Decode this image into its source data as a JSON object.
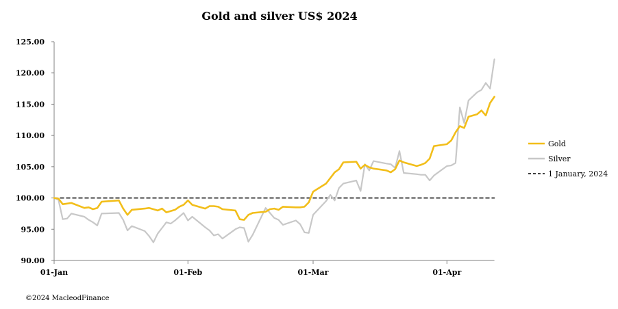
{
  "chart_data": {
    "type": "line",
    "title": "Gold and silver  US$ 2024",
    "xlabel": "",
    "ylabel": "",
    "ylim": [
      90,
      125
    ],
    "y_ticks": [
      "90.00",
      "95.00",
      "100.00",
      "105.00",
      "110.00",
      "115.00",
      "120.00",
      "125.00"
    ],
    "x_ticks": [
      {
        "label": "01-Jan",
        "date": "2024-01-01"
      },
      {
        "label": "01-Feb",
        "date": "2024-02-01"
      },
      {
        "label": "01-Mar",
        "date": "2024-03-01"
      },
      {
        "label": "01-Apr",
        "date": "2024-04-01"
      }
    ],
    "xlim": [
      "2024-01-01",
      "2024-04-12"
    ],
    "grid": false,
    "legend_position": "right",
    "series": [
      {
        "name": "Gold",
        "color": "#F2BE1A",
        "dashed": false,
        "points": [
          [
            "2024-01-01",
            100.0
          ],
          [
            "2024-01-02",
            99.9
          ],
          [
            "2024-01-03",
            99.0
          ],
          [
            "2024-01-04",
            99.1
          ],
          [
            "2024-01-05",
            99.2
          ],
          [
            "2024-01-08",
            98.4
          ],
          [
            "2024-01-09",
            98.5
          ],
          [
            "2024-01-10",
            98.2
          ],
          [
            "2024-01-11",
            98.4
          ],
          [
            "2024-01-12",
            99.4
          ],
          [
            "2024-01-16",
            99.6
          ],
          [
            "2024-01-17",
            98.3
          ],
          [
            "2024-01-18",
            97.3
          ],
          [
            "2024-01-19",
            98.1
          ],
          [
            "2024-01-22",
            98.3
          ],
          [
            "2024-01-23",
            98.4
          ],
          [
            "2024-01-24",
            98.2
          ],
          [
            "2024-01-25",
            98.0
          ],
          [
            "2024-01-26",
            98.3
          ],
          [
            "2024-01-27",
            97.7
          ],
          [
            "2024-01-28",
            97.9
          ],
          [
            "2024-01-29",
            98.1
          ],
          [
            "2024-01-30",
            98.6
          ],
          [
            "2024-01-31",
            98.9
          ],
          [
            "2024-02-01",
            99.6
          ],
          [
            "2024-02-02",
            98.9
          ],
          [
            "2024-02-05",
            98.3
          ],
          [
            "2024-02-06",
            98.7
          ],
          [
            "2024-02-07",
            98.7
          ],
          [
            "2024-02-08",
            98.6
          ],
          [
            "2024-02-09",
            98.2
          ],
          [
            "2024-02-12",
            98.0
          ],
          [
            "2024-02-13",
            96.6
          ],
          [
            "2024-02-14",
            96.5
          ],
          [
            "2024-02-15",
            97.3
          ],
          [
            "2024-02-16",
            97.6
          ],
          [
            "2024-02-19",
            97.8
          ],
          [
            "2024-02-20",
            98.2
          ],
          [
            "2024-02-21",
            98.3
          ],
          [
            "2024-02-22",
            98.1
          ],
          [
            "2024-02-23",
            98.6
          ],
          [
            "2024-02-26",
            98.5
          ],
          [
            "2024-02-27",
            98.5
          ],
          [
            "2024-02-28",
            98.6
          ],
          [
            "2024-02-29",
            99.3
          ],
          [
            "2024-03-01",
            101.0
          ],
          [
            "2024-03-04",
            102.3
          ],
          [
            "2024-03-05",
            103.2
          ],
          [
            "2024-03-06",
            104.1
          ],
          [
            "2024-03-07",
            104.6
          ],
          [
            "2024-03-08",
            105.7
          ],
          [
            "2024-03-11",
            105.8
          ],
          [
            "2024-03-12",
            104.7
          ],
          [
            "2024-03-13",
            105.3
          ],
          [
            "2024-03-14",
            104.9
          ],
          [
            "2024-03-15",
            104.7
          ],
          [
            "2024-03-18",
            104.4
          ],
          [
            "2024-03-19",
            104.1
          ],
          [
            "2024-03-20",
            104.6
          ],
          [
            "2024-03-21",
            106.0
          ],
          [
            "2024-03-22",
            105.7
          ],
          [
            "2024-03-25",
            105.1
          ],
          [
            "2024-03-26",
            105.3
          ],
          [
            "2024-03-27",
            105.6
          ],
          [
            "2024-03-28",
            106.3
          ],
          [
            "2024-03-29",
            108.3
          ],
          [
            "2024-04-01",
            108.6
          ],
          [
            "2024-04-02",
            109.2
          ],
          [
            "2024-04-03",
            110.5
          ],
          [
            "2024-04-04",
            111.5
          ],
          [
            "2024-04-05",
            111.2
          ],
          [
            "2024-04-06",
            113.0
          ],
          [
            "2024-04-08",
            113.4
          ],
          [
            "2024-04-09",
            114.0
          ],
          [
            "2024-04-10",
            113.2
          ],
          [
            "2024-04-11",
            115.2
          ],
          [
            "2024-04-12",
            116.2
          ]
        ]
      },
      {
        "name": "Silver",
        "color": "#C8C8C8",
        "dashed": false,
        "points": [
          [
            "2024-01-01",
            100.0
          ],
          [
            "2024-01-02",
            99.7
          ],
          [
            "2024-01-03",
            96.6
          ],
          [
            "2024-01-04",
            96.7
          ],
          [
            "2024-01-05",
            97.5
          ],
          [
            "2024-01-08",
            97.0
          ],
          [
            "2024-01-09",
            96.5
          ],
          [
            "2024-01-10",
            96.1
          ],
          [
            "2024-01-11",
            95.6
          ],
          [
            "2024-01-12",
            97.5
          ],
          [
            "2024-01-16",
            97.6
          ],
          [
            "2024-01-17",
            96.5
          ],
          [
            "2024-01-18",
            94.8
          ],
          [
            "2024-01-19",
            95.5
          ],
          [
            "2024-01-22",
            94.7
          ],
          [
            "2024-01-23",
            93.9
          ],
          [
            "2024-01-24",
            92.9
          ],
          [
            "2024-01-25",
            94.3
          ],
          [
            "2024-01-26",
            95.2
          ],
          [
            "2024-01-27",
            96.1
          ],
          [
            "2024-01-28",
            95.9
          ],
          [
            "2024-01-29",
            96.4
          ],
          [
            "2024-01-30",
            97.0
          ],
          [
            "2024-01-31",
            97.6
          ],
          [
            "2024-02-01",
            96.4
          ],
          [
            "2024-02-02",
            97.0
          ],
          [
            "2024-02-05",
            95.3
          ],
          [
            "2024-02-06",
            94.8
          ],
          [
            "2024-02-07",
            94.0
          ],
          [
            "2024-02-08",
            94.2
          ],
          [
            "2024-02-09",
            93.5
          ],
          [
            "2024-02-12",
            95.0
          ],
          [
            "2024-02-13",
            95.3
          ],
          [
            "2024-02-14",
            95.2
          ],
          [
            "2024-02-15",
            93.0
          ],
          [
            "2024-02-16",
            94.1
          ],
          [
            "2024-02-19",
            98.4
          ],
          [
            "2024-02-20",
            97.6
          ],
          [
            "2024-02-21",
            96.8
          ],
          [
            "2024-02-22",
            96.5
          ],
          [
            "2024-02-23",
            95.7
          ],
          [
            "2024-02-26",
            96.4
          ],
          [
            "2024-02-27",
            95.8
          ],
          [
            "2024-02-28",
            94.5
          ],
          [
            "2024-02-29",
            94.4
          ],
          [
            "2024-03-01",
            97.3
          ],
          [
            "2024-03-04",
            99.5
          ],
          [
            "2024-03-05",
            100.5
          ],
          [
            "2024-03-06",
            99.6
          ],
          [
            "2024-03-07",
            101.6
          ],
          [
            "2024-03-08",
            102.3
          ],
          [
            "2024-03-11",
            102.8
          ],
          [
            "2024-03-12",
            101.1
          ],
          [
            "2024-03-13",
            105.4
          ],
          [
            "2024-03-14",
            104.4
          ],
          [
            "2024-03-15",
            105.9
          ],
          [
            "2024-03-18",
            105.5
          ],
          [
            "2024-03-19",
            105.4
          ],
          [
            "2024-03-20",
            104.8
          ],
          [
            "2024-03-21",
            107.5
          ],
          [
            "2024-03-22",
            104.0
          ],
          [
            "2024-03-25",
            103.8
          ],
          [
            "2024-03-26",
            103.7
          ],
          [
            "2024-03-27",
            103.7
          ],
          [
            "2024-03-28",
            102.8
          ],
          [
            "2024-03-29",
            103.6
          ],
          [
            "2024-04-01",
            105.1
          ],
          [
            "2024-04-02",
            105.2
          ],
          [
            "2024-04-03",
            105.6
          ],
          [
            "2024-04-04",
            114.5
          ],
          [
            "2024-04-05",
            112.0
          ],
          [
            "2024-04-06",
            115.6
          ],
          [
            "2024-04-08",
            116.9
          ],
          [
            "2024-04-09",
            117.3
          ],
          [
            "2024-04-10",
            118.4
          ],
          [
            "2024-04-11",
            117.5
          ],
          [
            "2024-04-12",
            122.2
          ]
        ]
      },
      {
        "name": "1 January, 2024",
        "color": "#000000",
        "dashed": true,
        "points": [
          [
            "2024-01-01",
            100.0
          ],
          [
            "2024-04-12",
            100.0
          ]
        ]
      }
    ]
  },
  "footer": {
    "copyright": "©2024 MacleodFinance"
  }
}
